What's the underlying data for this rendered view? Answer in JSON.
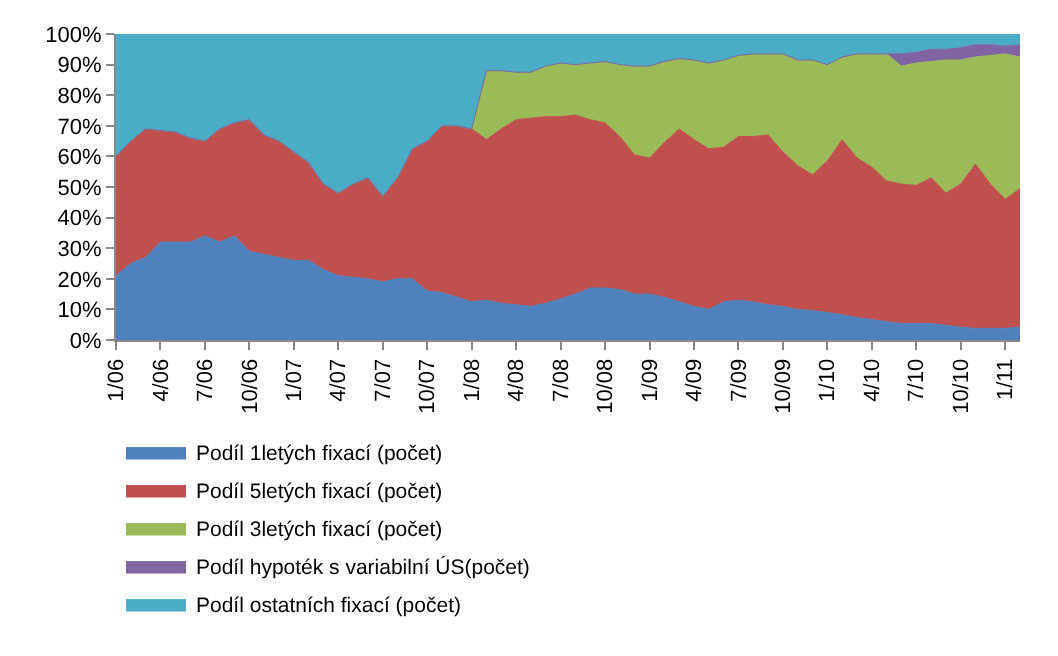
{
  "chart_data": {
    "type": "area",
    "stacked": true,
    "legend": "bottom",
    "categories": [
      "1/06",
      null,
      null,
      "4/06",
      null,
      null,
      "7/06",
      null,
      null,
      "10/06",
      null,
      null,
      "1/07",
      null,
      null,
      "4/07",
      null,
      null,
      "7/07",
      null,
      null,
      "10/07",
      null,
      null,
      "1/08",
      null,
      null,
      "4/08",
      null,
      null,
      "7/08",
      null,
      null,
      "10/08",
      null,
      null,
      "1/09",
      null,
      null,
      "4/09",
      null,
      null,
      "7/09",
      null,
      null,
      "10/09",
      null,
      null,
      "1/10",
      null,
      null,
      "4/10",
      null,
      null,
      "7/10",
      null,
      null,
      "10/10",
      null,
      null,
      "1/11",
      null
    ],
    "ylim": [
      0,
      100
    ],
    "yticks": [
      {
        "value": 0,
        "label": "0%"
      },
      {
        "value": 10,
        "label": "10%"
      },
      {
        "value": 20,
        "label": "20%"
      },
      {
        "value": 30,
        "label": "30%"
      },
      {
        "value": 40,
        "label": "40%"
      },
      {
        "value": 50,
        "label": "50%"
      },
      {
        "value": 60,
        "label": "60%"
      },
      {
        "value": 70,
        "label": "70%"
      },
      {
        "value": 80,
        "label": "80%"
      },
      {
        "value": 90,
        "label": "90%"
      },
      {
        "value": 100,
        "label": "100%"
      }
    ],
    "series": [
      {
        "name": "Podíl 1letých fixací (počet)",
        "color": "#4f81bd",
        "values": [
          21,
          25,
          27,
          32,
          32,
          32,
          34,
          32,
          34,
          29,
          28,
          27,
          26,
          26,
          23,
          21,
          20.5,
          20,
          19,
          20,
          20,
          16,
          15.5,
          14,
          12.5,
          13,
          12,
          11.5,
          11,
          12,
          13.5,
          15,
          17,
          17,
          16.5,
          15,
          15,
          14,
          12.5,
          11,
          10,
          12.5,
          13,
          12.5,
          11.5,
          11,
          10,
          9.6,
          9,
          8.3,
          7.3,
          6.7,
          6,
          5.4,
          5.4,
          5.4,
          4.8,
          4.2,
          3.8,
          3.8,
          3.8,
          4.2
        ]
      },
      {
        "name": "Podíl 5letých fixací (počet)",
        "color": "#c0504d",
        "values": [
          39,
          40,
          42,
          36.5,
          36,
          34,
          31,
          37,
          37,
          43,
          39,
          38,
          35.5,
          32,
          28,
          27,
          30.5,
          33,
          28,
          33,
          42.5,
          49,
          54.5,
          56,
          56.5,
          52.5,
          57,
          60.5,
          61.5,
          61,
          59.5,
          58.5,
          55,
          54,
          50,
          45.5,
          44.5,
          50.5,
          56.5,
          54.5,
          52.5,
          50.5,
          53.5,
          54,
          55.5,
          50.5,
          47,
          44.4,
          49.5,
          57.2,
          52.2,
          49.8,
          46,
          45.6,
          45.1,
          47.6,
          43.2,
          46.8,
          53.7,
          47.2,
          42.2,
          45.3
        ]
      },
      {
        "name": "Podíl 3letých fixací (počet)",
        "color": "#9bbb59",
        "values": [
          0,
          0,
          0,
          0,
          0,
          0,
          0,
          0,
          0,
          0,
          0,
          0,
          0,
          0,
          0,
          0,
          0,
          0,
          0,
          0,
          0,
          0,
          0,
          0,
          0,
          22.5,
          19,
          15.5,
          15,
          16.5,
          17.5,
          16.5,
          18.5,
          20,
          23.5,
          29,
          30,
          26.5,
          23,
          26,
          28,
          28.5,
          26.5,
          27,
          26.5,
          32,
          34.5,
          37.5,
          31.5,
          27,
          34,
          37,
          41.5,
          38.5,
          40,
          38,
          43.5,
          40.5,
          35,
          42,
          47.5,
          43
        ]
      },
      {
        "name": "Podíl hypoték s variabilní ÚS(počet)",
        "color": "#8064a2",
        "values": [
          0,
          0,
          0,
          0,
          0,
          0,
          0,
          0,
          0,
          0,
          0,
          0,
          0,
          0,
          0,
          0,
          0,
          0,
          0,
          0,
          0,
          0,
          0,
          0,
          0,
          0,
          0,
          0,
          0,
          0,
          0,
          0,
          0,
          0,
          0,
          0,
          0,
          0,
          0,
          0,
          0,
          0,
          0,
          0,
          0,
          0,
          0,
          0,
          0,
          0,
          0,
          0,
          0,
          4,
          3.5,
          4,
          3.5,
          4,
          4,
          3.5,
          2.5,
          4
        ]
      },
      {
        "name": "Podíl ostatních fixací (počet)",
        "color": "#4bacc6",
        "values": [
          40,
          35,
          31,
          31.5,
          32,
          34,
          35,
          31,
          29,
          28,
          33,
          35,
          38.5,
          42,
          49,
          52,
          49,
          47,
          53,
          47,
          37.5,
          35,
          30,
          30,
          31,
          12,
          12,
          12.5,
          12.5,
          10.5,
          9.5,
          10,
          9.5,
          9,
          10,
          10.5,
          10.5,
          9,
          8,
          8.5,
          9.5,
          8.5,
          7,
          6.5,
          6.5,
          6.5,
          8.5,
          8.5,
          10,
          7.5,
          6.5,
          6.5,
          6.5,
          6.5,
          6,
          5,
          5,
          4.5,
          3.5,
          3.5,
          4,
          3.5
        ]
      }
    ]
  }
}
